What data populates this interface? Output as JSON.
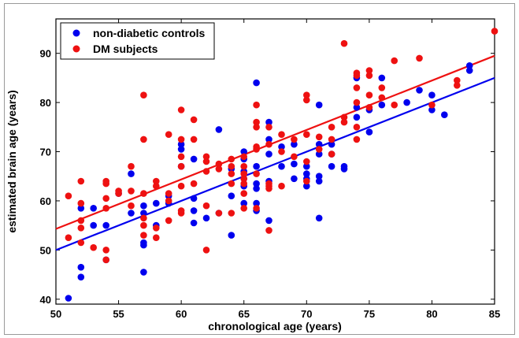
{
  "chart_data": {
    "type": "scatter",
    "title": "",
    "xlabel": "chronological age (years)",
    "ylabel": "estimated brain age (years)",
    "xlim": [
      50,
      85
    ],
    "ylim": [
      39,
      97
    ],
    "x_ticks": [
      50,
      55,
      60,
      65,
      70,
      75,
      80,
      85
    ],
    "y_ticks": [
      40,
      50,
      60,
      70,
      80,
      90
    ],
    "grid": false,
    "legend_position": "top-left",
    "series": [
      {
        "name": "non-diabetic controls",
        "color": "#0000ee",
        "points": [
          [
            51,
            40.2
          ],
          [
            52,
            44.5
          ],
          [
            52,
            46.5
          ],
          [
            52,
            58.5
          ],
          [
            53,
            55
          ],
          [
            53,
            58.5
          ],
          [
            54,
            48
          ],
          [
            54,
            55
          ],
          [
            55,
            61.5
          ],
          [
            56,
            57.5
          ],
          [
            56,
            65.5
          ],
          [
            57,
            45.5
          ],
          [
            57,
            51
          ],
          [
            57,
            51.5
          ],
          [
            57,
            57.5
          ],
          [
            57,
            59
          ],
          [
            58,
            55
          ],
          [
            58,
            59.5
          ],
          [
            59,
            59.5
          ],
          [
            59,
            61
          ],
          [
            60,
            67
          ],
          [
            60,
            70.5
          ],
          [
            60,
            71.5
          ],
          [
            61,
            55.5
          ],
          [
            61,
            58
          ],
          [
            61,
            60.5
          ],
          [
            61,
            68.5
          ],
          [
            62,
            56.5
          ],
          [
            63,
            74.5
          ],
          [
            63,
            57.5
          ],
          [
            64,
            53
          ],
          [
            64,
            61
          ],
          [
            64,
            66.5
          ],
          [
            65,
            59.5
          ],
          [
            65,
            63
          ],
          [
            65,
            64.5
          ],
          [
            65,
            66
          ],
          [
            65,
            68.5
          ],
          [
            65,
            70
          ],
          [
            66,
            58
          ],
          [
            66,
            59.5
          ],
          [
            66,
            62.5
          ],
          [
            66,
            63.5
          ],
          [
            66,
            67
          ],
          [
            66,
            84
          ],
          [
            67,
            56
          ],
          [
            67,
            64
          ],
          [
            67,
            69.5
          ],
          [
            67,
            72.5
          ],
          [
            67,
            76
          ],
          [
            68,
            67
          ],
          [
            68,
            71
          ],
          [
            69,
            64.5
          ],
          [
            69,
            67.5
          ],
          [
            69,
            71.5
          ],
          [
            70,
            63
          ],
          [
            70,
            64.5
          ],
          [
            70,
            65.5
          ],
          [
            70,
            67
          ],
          [
            71,
            56.5
          ],
          [
            71,
            64
          ],
          [
            71,
            65
          ],
          [
            71,
            69.5
          ],
          [
            71,
            71.5
          ],
          [
            71,
            79.5
          ],
          [
            72,
            67
          ],
          [
            72,
            69.5
          ],
          [
            72,
            71.5
          ],
          [
            73,
            66.5
          ],
          [
            73,
            67
          ],
          [
            74,
            77
          ],
          [
            74,
            79
          ],
          [
            74,
            85
          ],
          [
            75,
            74
          ],
          [
            75,
            78.5
          ],
          [
            76,
            79.5
          ],
          [
            76,
            85
          ],
          [
            78,
            80
          ],
          [
            79,
            82.5
          ],
          [
            80,
            78.5
          ],
          [
            80,
            81.5
          ],
          [
            81,
            77.5
          ],
          [
            83,
            87.5
          ],
          [
            83,
            86.5
          ]
        ]
      },
      {
        "name": "DM subjects",
        "color": "#ee1111",
        "points": [
          [
            51,
            52.5
          ],
          [
            51,
            61
          ],
          [
            52,
            51.5
          ],
          [
            52,
            54.5
          ],
          [
            52,
            56
          ],
          [
            52,
            59.5
          ],
          [
            52,
            64
          ],
          [
            53,
            50.5
          ],
          [
            54,
            48
          ],
          [
            54,
            50
          ],
          [
            54,
            58.5
          ],
          [
            54,
            60.5
          ],
          [
            54,
            63.5
          ],
          [
            54,
            64
          ],
          [
            55,
            61.5
          ],
          [
            55,
            62
          ],
          [
            56,
            59
          ],
          [
            56,
            62
          ],
          [
            56,
            67
          ],
          [
            57,
            53
          ],
          [
            57,
            55
          ],
          [
            57,
            56.5
          ],
          [
            57,
            61.5
          ],
          [
            57,
            72.5
          ],
          [
            57,
            81.5
          ],
          [
            58,
            52.5
          ],
          [
            58,
            54.5
          ],
          [
            58,
            63
          ],
          [
            58,
            64
          ],
          [
            59,
            56
          ],
          [
            59,
            60
          ],
          [
            59,
            61.5
          ],
          [
            59,
            73.5
          ],
          [
            60,
            57.5
          ],
          [
            60,
            58
          ],
          [
            60,
            63
          ],
          [
            60,
            67
          ],
          [
            60,
            69
          ],
          [
            60,
            72.5
          ],
          [
            60,
            78.5
          ],
          [
            61,
            63.5
          ],
          [
            61,
            72.5
          ],
          [
            61,
            76.5
          ],
          [
            62,
            50
          ],
          [
            62,
            59
          ],
          [
            62,
            66
          ],
          [
            62,
            68
          ],
          [
            62,
            69
          ],
          [
            63,
            57.5
          ],
          [
            63,
            66.5
          ],
          [
            63,
            67.5
          ],
          [
            64,
            57.5
          ],
          [
            64,
            63.5
          ],
          [
            64,
            65.5
          ],
          [
            64,
            67
          ],
          [
            64,
            68.5
          ],
          [
            65,
            58.5
          ],
          [
            65,
            61.5
          ],
          [
            65,
            63.5
          ],
          [
            65,
            64.5
          ],
          [
            65,
            65.5
          ],
          [
            65,
            67
          ],
          [
            65,
            69
          ],
          [
            66,
            58.5
          ],
          [
            66,
            65.5
          ],
          [
            66,
            70.5
          ],
          [
            66,
            71
          ],
          [
            66,
            75
          ],
          [
            66,
            76
          ],
          [
            66,
            79.5
          ],
          [
            67,
            54
          ],
          [
            67,
            62.5
          ],
          [
            67,
            63
          ],
          [
            67,
            63.5
          ],
          [
            67,
            71.5
          ],
          [
            67,
            75
          ],
          [
            68,
            63
          ],
          [
            68,
            70
          ],
          [
            68,
            73.5
          ],
          [
            69,
            69
          ],
          [
            69,
            72.5
          ],
          [
            70,
            64
          ],
          [
            70,
            68
          ],
          [
            70,
            73.5
          ],
          [
            70,
            80.5
          ],
          [
            70,
            81.5
          ],
          [
            71,
            70.5
          ],
          [
            71,
            73
          ],
          [
            72,
            69.5
          ],
          [
            72,
            72.5
          ],
          [
            72,
            75
          ],
          [
            73,
            76
          ],
          [
            73,
            77
          ],
          [
            73,
            92
          ],
          [
            74,
            72.5
          ],
          [
            74,
            75
          ],
          [
            74,
            80
          ],
          [
            74,
            83
          ],
          [
            74,
            85.5
          ],
          [
            74,
            86
          ],
          [
            75,
            79
          ],
          [
            75,
            81.5
          ],
          [
            75,
            85.5
          ],
          [
            75,
            86.5
          ],
          [
            76,
            81
          ],
          [
            76,
            83
          ],
          [
            77,
            79.5
          ],
          [
            77,
            88.5
          ],
          [
            79,
            89
          ],
          [
            80,
            79.5
          ],
          [
            82,
            83.5
          ],
          [
            82,
            84.5
          ],
          [
            85,
            94.5
          ]
        ]
      }
    ],
    "fit_lines": [
      {
        "series": "non-diabetic controls",
        "color": "#0000ee",
        "x": [
          50,
          85
        ],
        "y": [
          50,
          85
        ]
      },
      {
        "series": "DM subjects",
        "color": "#ee1111",
        "x": [
          50,
          85
        ],
        "y": [
          54.3,
          89.5
        ]
      }
    ]
  }
}
